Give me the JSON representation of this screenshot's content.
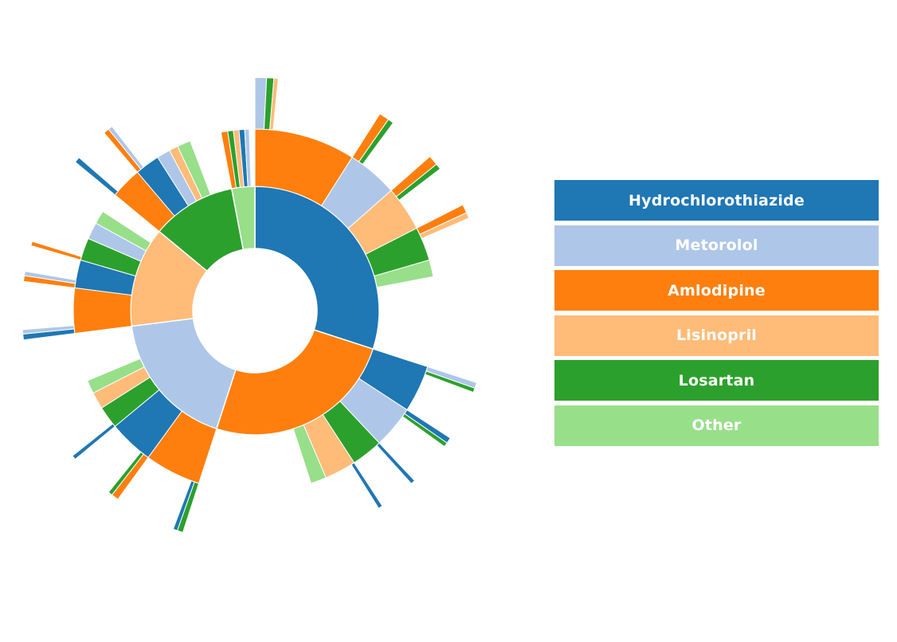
{
  "legend": {
    "items": [
      {
        "label": "Hydrochlorothiazide",
        "color": "#1f77b4"
      },
      {
        "label": "Metorolol",
        "color": "#aec7e8"
      },
      {
        "label": "Amlodipine",
        "color": "#ff7f0e"
      },
      {
        "label": "Lisinopril",
        "color": "#ffbb78"
      },
      {
        "label": "Losartan",
        "color": "#2ca02c"
      },
      {
        "label": "Other",
        "color": "#98df8a"
      }
    ]
  },
  "chart_data": {
    "type": "sunburst",
    "title": "",
    "colors": {
      "Hydrochlorothiazide": "#1f77b4",
      "Metorolol": "#aec7e8",
      "Amlodipine": "#ff7f0e",
      "Lisinopril": "#ffbb78",
      "Losartan": "#2ca02c",
      "Other": "#98df8a"
    },
    "hierarchy": [
      {
        "name": "Hydrochlorothiazide",
        "value": 30,
        "children": [
          {
            "name": "Amlodipine",
            "value": 9,
            "children": [
              {
                "name": "Metorolol",
                "value": 0.8
              },
              {
                "name": "Losartan",
                "value": 0.5
              },
              {
                "name": "Lisinopril",
                "value": 0.3
              }
            ]
          },
          {
            "name": "Metorolol",
            "value": 4.5,
            "children": [
              {
                "name": "Amlodipine",
                "value": 0.7
              },
              {
                "name": "Losartan",
                "value": 0.4
              }
            ]
          },
          {
            "name": "Lisinopril",
            "value": 4,
            "children": [
              {
                "name": "Amlodipine",
                "value": 0.7
              },
              {
                "name": "Losartan",
                "value": 0.4
              }
            ]
          },
          {
            "name": "Losartan",
            "value": 3,
            "children": [
              {
                "name": "Amlodipine",
                "value": 0.6
              },
              {
                "name": "Lisinopril",
                "value": 0.4
              }
            ]
          },
          {
            "name": "Other",
            "value": 1.5
          }
        ]
      },
      {
        "name": "Amlodipine",
        "value": 25,
        "children": [
          {
            "name": "Hydrochlorothiazide",
            "value": 4.2,
            "children": [
              {
                "name": "Metorolol",
                "value": 0.4
              },
              {
                "name": "Losartan",
                "value": 0.3
              }
            ]
          },
          {
            "name": "Metorolol",
            "value": 3.8,
            "children": [
              {
                "name": "Hydrochlorothiazide",
                "value": 0.4
              },
              {
                "name": "Losartan",
                "value": 0.3
              }
            ]
          },
          {
            "name": "Losartan",
            "value": 2.8,
            "children": [
              {
                "name": "Hydrochlorothiazide",
                "value": 0.3
              }
            ]
          },
          {
            "name": "Lisinopril",
            "value": 2.8,
            "children": [
              {
                "name": "Hydrochlorothiazide",
                "value": 0.3
              }
            ]
          },
          {
            "name": "Other",
            "value": 1.4
          }
        ]
      },
      {
        "name": "Metorolol",
        "value": 18,
        "children": [
          {
            "name": "Amlodipine",
            "value": 5,
            "children": [
              {
                "name": "Losartan",
                "value": 0.4
              },
              {
                "name": "Hydrochlorothiazide",
                "value": 0.3
              }
            ]
          },
          {
            "name": "Hydrochlorothiazide",
            "value": 4,
            "children": [
              {
                "name": "Amlodipine",
                "value": 0.5
              },
              {
                "name": "Losartan",
                "value": 0.3
              }
            ]
          },
          {
            "name": "Losartan",
            "value": 2,
            "children": [
              {
                "name": "Hydrochlorothiazide",
                "value": 0.3
              }
            ]
          },
          {
            "name": "Lisinopril",
            "value": 1.5
          },
          {
            "name": "Other",
            "value": 1.2
          }
        ]
      },
      {
        "name": "Lisinopril",
        "value": 13,
        "children": [
          {
            "name": "Amlodipine",
            "value": 4,
            "children": [
              {
                "name": "Hydrochlorothiazide",
                "value": 0.4
              },
              {
                "name": "Metorolol",
                "value": 0.3
              }
            ]
          },
          {
            "name": "Hydrochlorothiazide",
            "value": 2.5,
            "children": [
              {
                "name": "Amlodipine",
                "value": 0.4
              },
              {
                "name": "Metorolol",
                "value": 0.3
              }
            ]
          },
          {
            "name": "Losartan",
            "value": 2,
            "children": [
              {
                "name": "Amlodipine",
                "value": 0.3
              }
            ]
          },
          {
            "name": "Metorolol",
            "value": 1.5
          },
          {
            "name": "Other",
            "value": 1.2
          }
        ]
      },
      {
        "name": "Losartan",
        "value": 11,
        "children": [
          {
            "name": "Amlodipine",
            "value": 2.8,
            "children": [
              {
                "name": "Hydrochlorothiazide",
                "value": 0.4
              }
            ]
          },
          {
            "name": "Hydrochlorothiazide",
            "value": 2.2,
            "children": [
              {
                "name": "Amlodipine",
                "value": 0.4
              },
              {
                "name": "Metorolol",
                "value": 0.3
              }
            ]
          },
          {
            "name": "Metorolol",
            "value": 1.2
          },
          {
            "name": "Lisinopril",
            "value": 0.8
          },
          {
            "name": "Other",
            "value": 1.2
          }
        ]
      },
      {
        "name": "Other",
        "value": 3,
        "children": [
          {
            "name": "Amlodipine",
            "value": 0.6
          },
          {
            "name": "Losartan",
            "value": 0.5
          },
          {
            "name": "Lisinopril",
            "value": 0.5
          },
          {
            "name": "Hydrochlorothiazide",
            "value": 0.5
          },
          {
            "name": "Metorolol",
            "value": 0.4
          }
        ]
      }
    ],
    "legend_position": "right"
  }
}
